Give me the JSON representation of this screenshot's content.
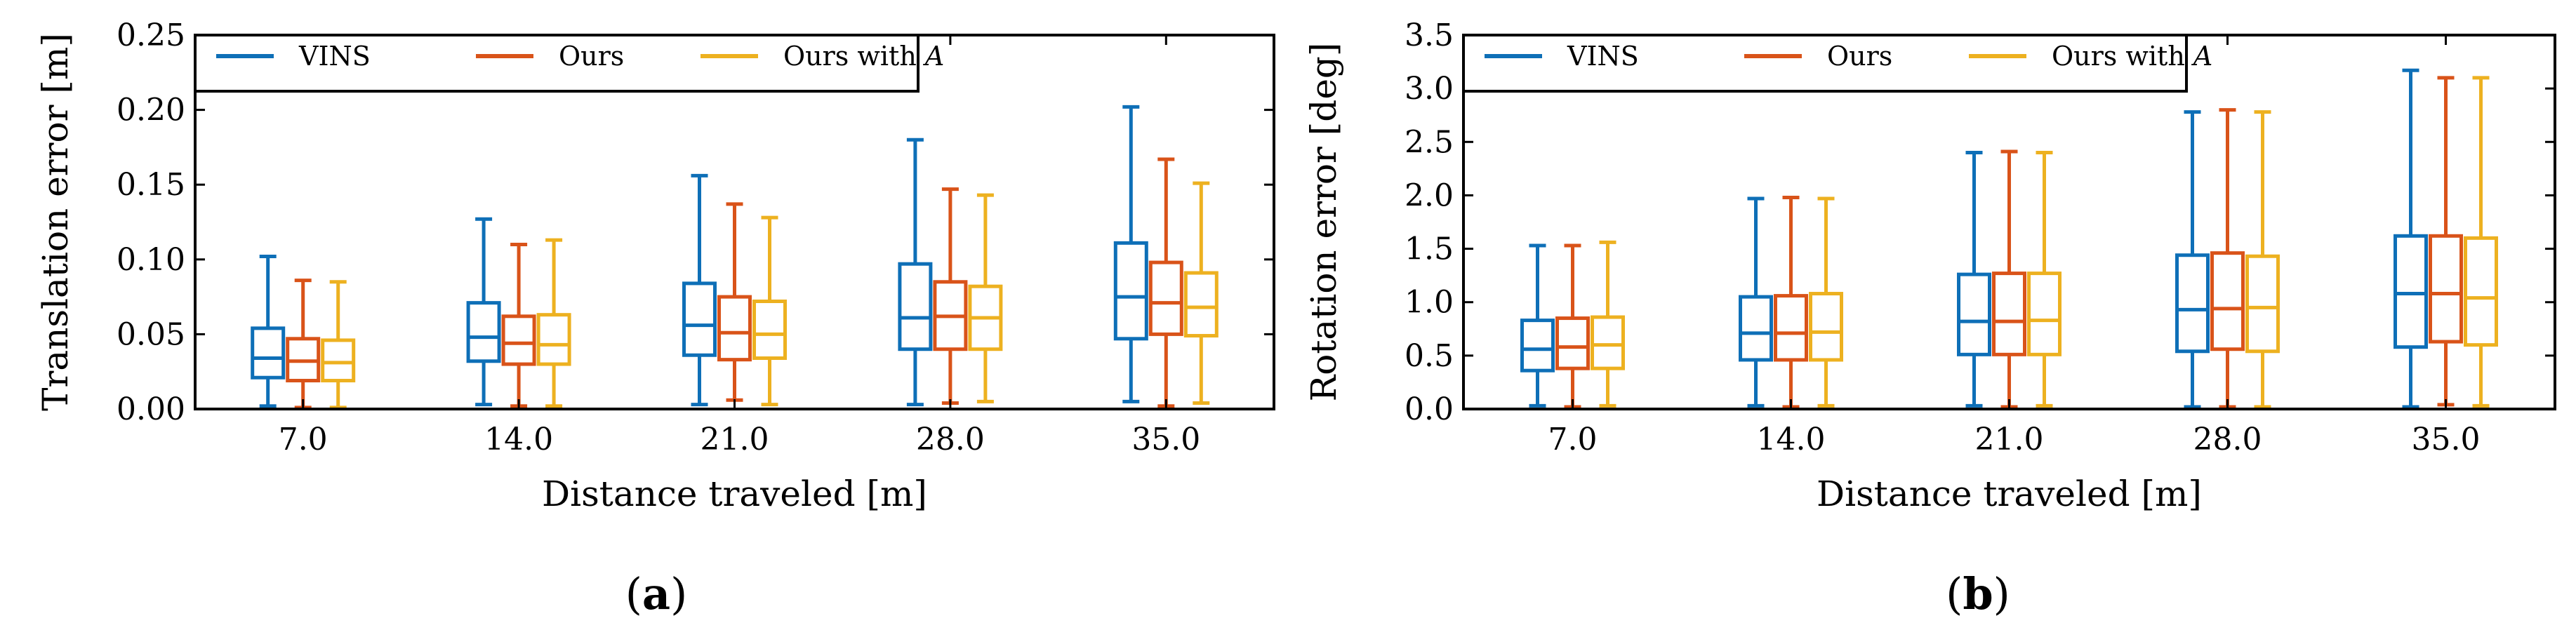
{
  "colors": {
    "VINS": "#0e6fb7",
    "Ours": "#d95319",
    "Ours with A": "#edb120"
  },
  "chart_data": [
    {
      "type": "boxplot",
      "caption": {
        "open": "(",
        "letter": "a",
        "close": ")"
      },
      "xlabel": "Distance traveled [m]",
      "ylabel": "Translation error [m]",
      "ylim": [
        0,
        0.25
      ],
      "yticks": [
        0.0,
        0.05,
        0.1,
        0.15,
        0.2,
        0.25
      ],
      "ytick_labels": [
        "0.00",
        "0.05",
        "0.10",
        "0.15",
        "0.20",
        "0.25"
      ],
      "categories": [
        "7.0",
        "14.0",
        "21.0",
        "28.0",
        "35.0"
      ],
      "legend": {
        "location": "top-left",
        "items": [
          "VINS",
          "Ours",
          "Ours with "
        ],
        "italic_suffix": [
          "",
          "",
          "A"
        ]
      },
      "series": [
        {
          "name": "VINS",
          "boxes": [
            {
              "min": 0.002,
              "q1": 0.021,
              "median": 0.034,
              "q3": 0.054,
              "max": 0.102
            },
            {
              "min": 0.003,
              "q1": 0.032,
              "median": 0.048,
              "q3": 0.071,
              "max": 0.127
            },
            {
              "min": 0.003,
              "q1": 0.036,
              "median": 0.056,
              "q3": 0.084,
              "max": 0.156
            },
            {
              "min": 0.003,
              "q1": 0.04,
              "median": 0.061,
              "q3": 0.097,
              "max": 0.18
            },
            {
              "min": 0.005,
              "q1": 0.047,
              "median": 0.075,
              "q3": 0.111,
              "max": 0.202
            }
          ]
        },
        {
          "name": "Ours",
          "boxes": [
            {
              "min": 0.001,
              "q1": 0.019,
              "median": 0.032,
              "q3": 0.047,
              "max": 0.086
            },
            {
              "min": 0.002,
              "q1": 0.03,
              "median": 0.044,
              "q3": 0.062,
              "max": 0.11
            },
            {
              "min": 0.006,
              "q1": 0.033,
              "median": 0.051,
              "q3": 0.075,
              "max": 0.137
            },
            {
              "min": 0.004,
              "q1": 0.04,
              "median": 0.062,
              "q3": 0.085,
              "max": 0.147
            },
            {
              "min": 0.002,
              "q1": 0.05,
              "median": 0.071,
              "q3": 0.098,
              "max": 0.167
            }
          ]
        },
        {
          "name": "Ours with A",
          "boxes": [
            {
              "min": 0.001,
              "q1": 0.019,
              "median": 0.031,
              "q3": 0.046,
              "max": 0.085
            },
            {
              "min": 0.002,
              "q1": 0.03,
              "median": 0.043,
              "q3": 0.063,
              "max": 0.113
            },
            {
              "min": 0.003,
              "q1": 0.034,
              "median": 0.05,
              "q3": 0.072,
              "max": 0.128
            },
            {
              "min": 0.005,
              "q1": 0.04,
              "median": 0.061,
              "q3": 0.082,
              "max": 0.143
            },
            {
              "min": 0.004,
              "q1": 0.049,
              "median": 0.068,
              "q3": 0.091,
              "max": 0.151
            }
          ]
        }
      ]
    },
    {
      "type": "boxplot",
      "caption": {
        "open": "(",
        "letter": "b",
        "close": ")"
      },
      "xlabel": "Distance traveled [m]",
      "ylabel": "Rotation error [deg]",
      "ylim": [
        0,
        3.5
      ],
      "yticks": [
        0.0,
        0.5,
        1.0,
        1.5,
        2.0,
        2.5,
        3.0,
        3.5
      ],
      "ytick_labels": [
        "0.0",
        "0.5",
        "1.0",
        "1.5",
        "2.0",
        "2.5",
        "3.0",
        "3.5"
      ],
      "categories": [
        "7.0",
        "14.0",
        "21.0",
        "28.0",
        "35.0"
      ],
      "legend": {
        "location": "top-left",
        "items": [
          "VINS",
          "Ours",
          "Ours with "
        ],
        "italic_suffix": [
          "",
          "",
          "A"
        ]
      },
      "series": [
        {
          "name": "VINS",
          "boxes": [
            {
              "min": 0.03,
              "q1": 0.36,
              "median": 0.56,
              "q3": 0.83,
              "max": 1.53
            },
            {
              "min": 0.03,
              "q1": 0.46,
              "median": 0.71,
              "q3": 1.05,
              "max": 1.97
            },
            {
              "min": 0.03,
              "q1": 0.51,
              "median": 0.82,
              "q3": 1.26,
              "max": 2.4
            },
            {
              "min": 0.02,
              "q1": 0.54,
              "median": 0.93,
              "q3": 1.44,
              "max": 2.78
            },
            {
              "min": 0.02,
              "q1": 0.58,
              "median": 1.08,
              "q3": 1.62,
              "max": 3.17
            }
          ]
        },
        {
          "name": "Ours",
          "boxes": [
            {
              "min": 0.02,
              "q1": 0.38,
              "median": 0.58,
              "q3": 0.85,
              "max": 1.53
            },
            {
              "min": 0.02,
              "q1": 0.46,
              "median": 0.71,
              "q3": 1.06,
              "max": 1.98
            },
            {
              "min": 0.02,
              "q1": 0.51,
              "median": 0.82,
              "q3": 1.27,
              "max": 2.41
            },
            {
              "min": 0.02,
              "q1": 0.56,
              "median": 0.94,
              "q3": 1.46,
              "max": 2.8
            },
            {
              "min": 0.04,
              "q1": 0.63,
              "median": 1.08,
              "q3": 1.62,
              "max": 3.1
            }
          ]
        },
        {
          "name": "Ours with A",
          "boxes": [
            {
              "min": 0.03,
              "q1": 0.38,
              "median": 0.6,
              "q3": 0.86,
              "max": 1.56
            },
            {
              "min": 0.03,
              "q1": 0.46,
              "median": 0.72,
              "q3": 1.08,
              "max": 1.97
            },
            {
              "min": 0.03,
              "q1": 0.51,
              "median": 0.83,
              "q3": 1.27,
              "max": 2.4
            },
            {
              "min": 0.02,
              "q1": 0.54,
              "median": 0.95,
              "q3": 1.43,
              "max": 2.78
            },
            {
              "min": 0.03,
              "q1": 0.6,
              "median": 1.04,
              "q3": 1.6,
              "max": 3.1
            }
          ]
        }
      ]
    }
  ]
}
